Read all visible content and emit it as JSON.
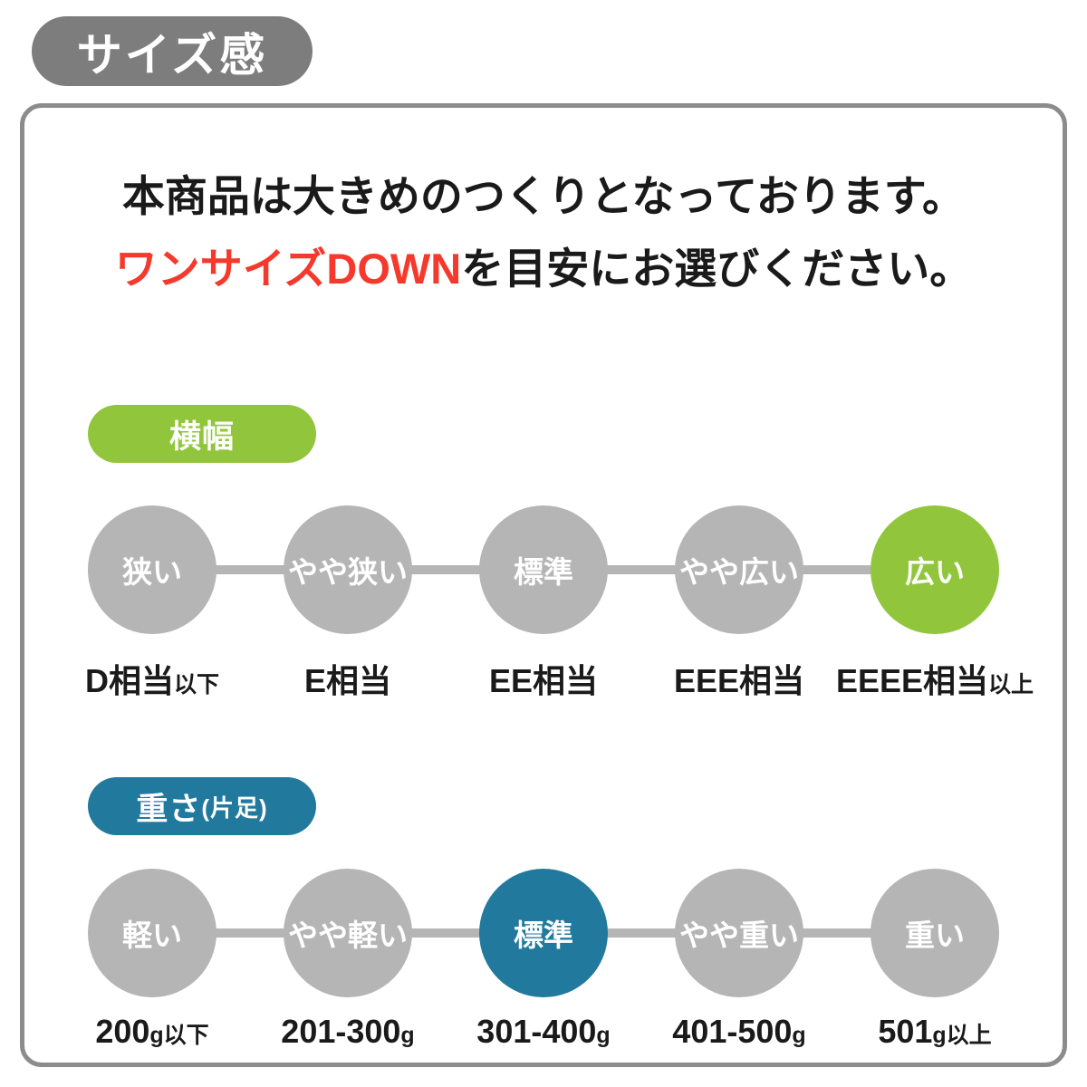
{
  "header": {
    "title": "サイズ感"
  },
  "description": {
    "line1": "本商品は大きめのつくりとなっております。",
    "line2_highlight": "ワンサイズDOWN",
    "line2_rest": "を目安にお選びください。"
  },
  "colors": {
    "title_badge_gray": "#7d7d7d",
    "panel_border_gray": "#8c8c8c",
    "circle_gray": "#b5b5b5",
    "accent_green": "#91c63c",
    "accent_teal": "#22799e",
    "highlight_red": "#f5392d"
  },
  "width_section": {
    "badge_label": "横幅",
    "levels": [
      {
        "label": "狭い",
        "selected": false
      },
      {
        "label": "やや狭い",
        "selected": false
      },
      {
        "label": "標準",
        "selected": false
      },
      {
        "label": "やや広い",
        "selected": false
      },
      {
        "label": "広い",
        "selected": true
      }
    ],
    "scale_labels": [
      {
        "main": "D相当",
        "small": "以下"
      },
      {
        "main": "E相当",
        "small": ""
      },
      {
        "main": "EE相当",
        "small": ""
      },
      {
        "main": "EEE相当",
        "small": ""
      },
      {
        "main": "EEEE相当",
        "small": "以上"
      }
    ]
  },
  "weight_section": {
    "badge_label": "重さ",
    "badge_label_small": "(片足)",
    "levels": [
      {
        "label": "軽い",
        "selected": false
      },
      {
        "label": "やや軽い",
        "selected": false
      },
      {
        "label": "標準",
        "selected": true
      },
      {
        "label": "やや重い",
        "selected": false
      },
      {
        "label": "重い",
        "selected": false
      }
    ],
    "scale_labels": [
      {
        "main": "200",
        "small": "g以下"
      },
      {
        "main": "201-300",
        "small": "g"
      },
      {
        "main": "301-400",
        "small": "g"
      },
      {
        "main": "401-500",
        "small": "g"
      },
      {
        "main": "501",
        "small": "g以上"
      }
    ]
  }
}
